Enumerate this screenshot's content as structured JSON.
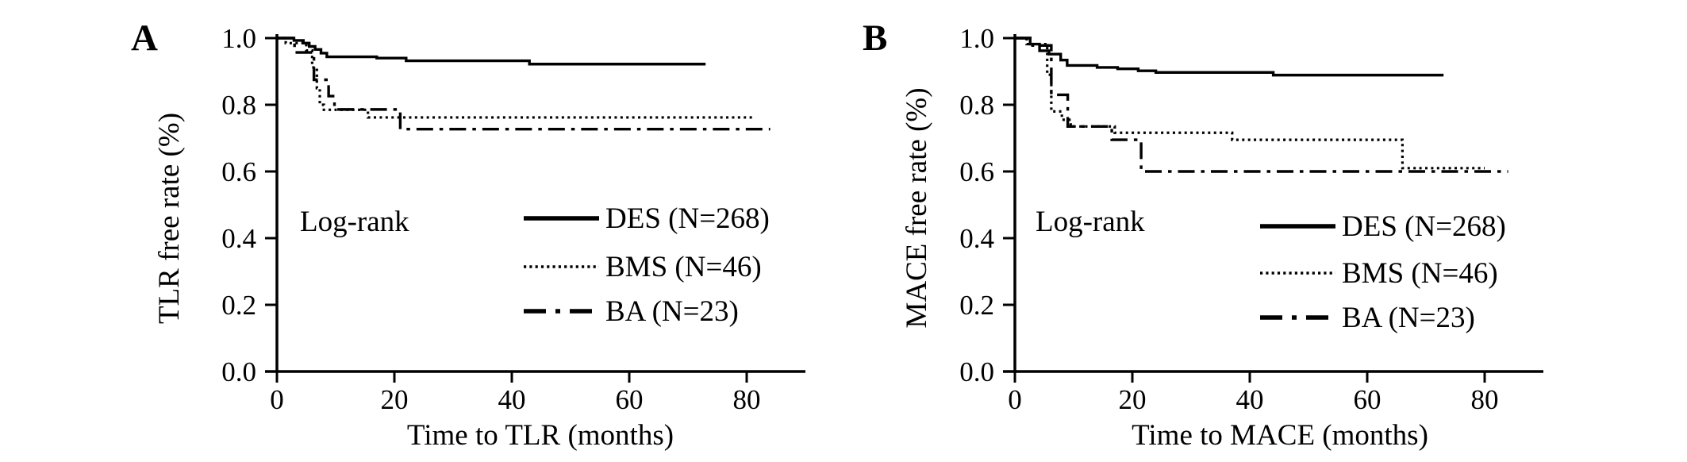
{
  "figure": {
    "background_color": "#ffffff",
    "ink_color": "#000000",
    "description_visible_text_only": true
  },
  "chart_data": [
    {
      "type": "line",
      "subtype": "kaplan-meier-step",
      "panel_label": "A",
      "xlabel": "Time to TLR (months)",
      "ylabel": "TLR free rate (%)",
      "annotation": "Log-rank",
      "xlim": [
        0,
        90
      ],
      "ylim": [
        0.0,
        1.0
      ],
      "xticks": [
        0,
        20,
        40,
        60,
        80
      ],
      "xtick_labels": [
        "0",
        "20",
        "40",
        "60",
        "80"
      ],
      "yticks": [
        1.0,
        0.8,
        0.6,
        0.4,
        0.2,
        0.0
      ],
      "ytick_labels": [
        "1.0",
        "0.8",
        "0.6",
        "0.4",
        "0.2",
        "0.0"
      ],
      "grid": false,
      "legend_position": "center-right",
      "series": [
        {
          "name": "DES (N=268)",
          "style": "solid",
          "steps": [
            [
              0,
              1.0
            ],
            [
              2.9,
              0.993
            ],
            [
              4.5,
              0.985
            ],
            [
              5.5,
              0.975
            ],
            [
              6.5,
              0.966
            ],
            [
              7.5,
              0.955
            ],
            [
              8.5,
              0.944
            ],
            [
              17,
              0.94
            ],
            [
              22,
              0.932
            ],
            [
              43,
              0.922
            ],
            [
              73,
              0.922
            ]
          ]
        },
        {
          "name": "BMS (N=46)",
          "style": "dotted",
          "steps": [
            [
              0,
              1.0
            ],
            [
              1.5,
              0.985
            ],
            [
              5,
              0.963
            ],
            [
              6,
              0.912
            ],
            [
              6.8,
              0.85
            ],
            [
              7.3,
              0.8
            ],
            [
              8,
              0.785
            ],
            [
              15.5,
              0.762
            ],
            [
              81,
              0.762
            ]
          ]
        },
        {
          "name": "BA (N=23)",
          "style": "dashdot",
          "steps": [
            [
              0,
              1.0
            ],
            [
              3,
              0.957
            ],
            [
              6.3,
              0.875
            ],
            [
              8.8,
              0.826
            ],
            [
              9.8,
              0.786
            ],
            [
              21,
              0.727
            ],
            [
              84,
              0.727
            ]
          ]
        }
      ]
    },
    {
      "type": "line",
      "subtype": "kaplan-meier-step",
      "panel_label": "B",
      "xlabel": "Time to MACE (months)",
      "ylabel": "MACE free rate (%)",
      "annotation": "Log-rank",
      "xlim": [
        0,
        90
      ],
      "ylim": [
        0.0,
        1.0
      ],
      "xticks": [
        0,
        20,
        40,
        60,
        80
      ],
      "xtick_labels": [
        "0",
        "20",
        "40",
        "60",
        "80"
      ],
      "yticks": [
        1.0,
        0.8,
        0.6,
        0.4,
        0.2,
        0.0
      ],
      "ytick_labels": [
        "1.0",
        "0.8",
        "0.6",
        "0.4",
        "0.2",
        "0.0"
      ],
      "grid": false,
      "legend_position": "center-right",
      "series": [
        {
          "name": "DES (N=268)",
          "style": "solid",
          "steps": [
            [
              0,
              1.0
            ],
            [
              2.6,
              0.982
            ],
            [
              4.2,
              0.962
            ],
            [
              5.8,
              0.952
            ],
            [
              7.8,
              0.934
            ],
            [
              8.9,
              0.918
            ],
            [
              14,
              0.912
            ],
            [
              17.5,
              0.908
            ],
            [
              21,
              0.902
            ],
            [
              24,
              0.897
            ],
            [
              44,
              0.889
            ],
            [
              73,
              0.889
            ]
          ]
        },
        {
          "name": "BMS (N=46)",
          "style": "dotted",
          "steps": [
            [
              0,
              1.0
            ],
            [
              2,
              0.982
            ],
            [
              5.5,
              0.89
            ],
            [
              6.2,
              0.78
            ],
            [
              8,
              0.755
            ],
            [
              9.5,
              0.735
            ],
            [
              17,
              0.716
            ],
            [
              37,
              0.695
            ],
            [
              66,
              0.61
            ],
            [
              80,
              0.61
            ]
          ]
        },
        {
          "name": "BA (N=23)",
          "style": "dashdot",
          "steps": [
            [
              0,
              1.0
            ],
            [
              3,
              0.978
            ],
            [
              6.2,
              0.83
            ],
            [
              9,
              0.735
            ],
            [
              16.5,
              0.695
            ],
            [
              21.5,
              0.6
            ],
            [
              84,
              0.6
            ]
          ]
        }
      ]
    }
  ]
}
